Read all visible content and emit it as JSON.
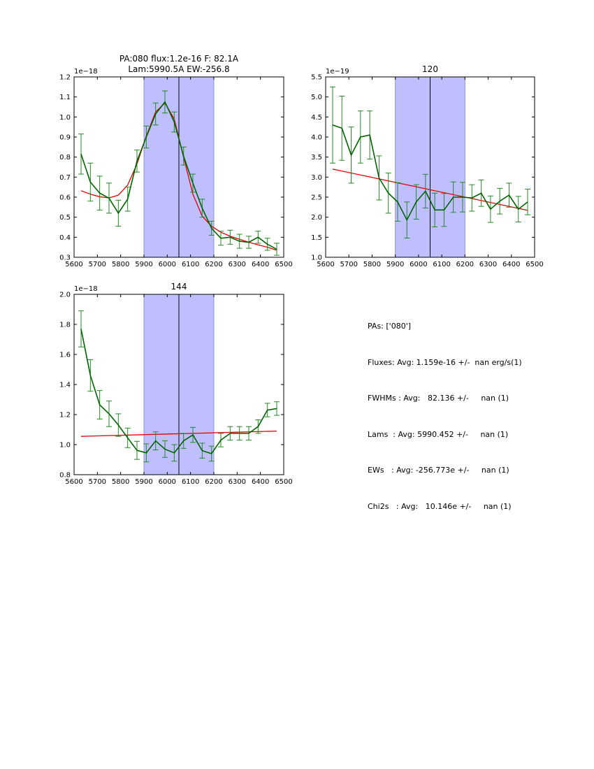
{
  "colors": {
    "band": "#bfbfff",
    "band_edge": "#8080c0",
    "data_line": "#006400",
    "errorbar": "#228b22",
    "fit": "#e00000",
    "axis": "#000000"
  },
  "chart_data": [
    {
      "type": "line",
      "title_lines": [
        "PA:080 flux:1.2e-16 F: 82.1A",
        "Lam:5990.5A EW:-256.8"
      ],
      "offset_label": "1e−18",
      "xlim": [
        5600,
        6500
      ],
      "ylim": [
        0.3,
        1.2
      ],
      "xticks": [
        5600,
        5700,
        5800,
        5900,
        6000,
        6100,
        6200,
        6300,
        6400,
        6500
      ],
      "yticks": [
        0.3,
        0.4,
        0.5,
        0.6,
        0.7,
        0.8,
        0.9,
        1.0,
        1.1,
        1.2
      ],
      "ytick_labels": [
        "0.3",
        "0.4",
        "0.5",
        "0.6",
        "0.7",
        "0.8",
        "0.9",
        "1.0",
        "1.1",
        "1.2"
      ],
      "band": [
        5900,
        6200
      ],
      "vline": 6050,
      "series": [
        {
          "name": "data",
          "x": [
            5630,
            5670,
            5710,
            5750,
            5790,
            5830,
            5870,
            5910,
            5950,
            5990,
            6030,
            6070,
            6110,
            6150,
            6190,
            6230,
            6270,
            6310,
            6350,
            6390,
            6430,
            6470
          ],
          "y": [
            0.815,
            0.675,
            0.62,
            0.595,
            0.52,
            0.59,
            0.78,
            0.9,
            1.015,
            1.075,
            0.975,
            0.805,
            0.67,
            0.545,
            0.445,
            0.395,
            0.4,
            0.38,
            0.375,
            0.4,
            0.365,
            0.34
          ],
          "err": [
            0.1,
            0.095,
            0.085,
            0.075,
            0.065,
            0.06,
            0.055,
            0.055,
            0.055,
            0.055,
            0.05,
            0.045,
            0.045,
            0.045,
            0.035,
            0.035,
            0.035,
            0.035,
            0.03,
            0.03,
            0.03,
            0.03
          ]
        },
        {
          "name": "fit",
          "x": [
            5630,
            5670,
            5710,
            5750,
            5790,
            5830,
            5870,
            5910,
            5950,
            5990,
            6030,
            6070,
            6110,
            6150,
            6190,
            6230,
            6270,
            6310,
            6350,
            6390,
            6430,
            6470
          ],
          "y": [
            0.632,
            0.615,
            0.602,
            0.596,
            0.61,
            0.66,
            0.765,
            0.905,
            1.025,
            1.07,
            0.99,
            0.8,
            0.615,
            0.505,
            0.455,
            0.425,
            0.405,
            0.39,
            0.375,
            0.362,
            0.35,
            0.335
          ]
        }
      ]
    },
    {
      "type": "line",
      "title_lines": [
        "120"
      ],
      "offset_label": "1e−19",
      "xlim": [
        5600,
        6500
      ],
      "ylim": [
        1.0,
        5.5
      ],
      "xticks": [
        5600,
        5700,
        5800,
        5900,
        6000,
        6100,
        6200,
        6300,
        6400,
        6500
      ],
      "yticks": [
        1.0,
        1.5,
        2.0,
        2.5,
        3.0,
        3.5,
        4.0,
        4.5,
        5.0,
        5.5
      ],
      "ytick_labels": [
        "1.0",
        "1.5",
        "2.0",
        "2.5",
        "3.0",
        "3.5",
        "4.0",
        "4.5",
        "5.0",
        "5.5"
      ],
      "band": [
        5900,
        6200
      ],
      "vline": 6050,
      "series": [
        {
          "name": "data",
          "x": [
            5630,
            5670,
            5710,
            5750,
            5790,
            5830,
            5870,
            5910,
            5950,
            5990,
            6030,
            6070,
            6110,
            6150,
            6190,
            6230,
            6270,
            6310,
            6350,
            6390,
            6430,
            6470
          ],
          "y": [
            4.3,
            4.22,
            3.55,
            4.0,
            4.05,
            2.98,
            2.6,
            2.38,
            1.93,
            2.38,
            2.65,
            2.18,
            2.18,
            2.5,
            2.5,
            2.48,
            2.6,
            2.2,
            2.4,
            2.55,
            2.2,
            2.38
          ],
          "err": [
            0.95,
            0.8,
            0.7,
            0.65,
            0.6,
            0.55,
            0.5,
            0.48,
            0.45,
            0.43,
            0.42,
            0.42,
            0.41,
            0.38,
            0.37,
            0.33,
            0.33,
            0.33,
            0.32,
            0.3,
            0.32,
            0.32
          ]
        },
        {
          "name": "fit",
          "x": [
            5630,
            6470
          ],
          "y": [
            3.2,
            2.17
          ]
        }
      ]
    },
    {
      "type": "line",
      "title_lines": [
        "144"
      ],
      "offset_label": "1e−18",
      "xlim": [
        5600,
        6500
      ],
      "ylim": [
        0.8,
        2.0
      ],
      "xticks": [
        5600,
        5700,
        5800,
        5900,
        6000,
        6100,
        6200,
        6300,
        6400,
        6500
      ],
      "yticks": [
        0.8,
        1.0,
        1.2,
        1.4,
        1.6,
        1.8,
        2.0
      ],
      "ytick_labels": [
        "0.8",
        "1.0",
        "1.2",
        "1.4",
        "1.6",
        "1.8",
        "2.0"
      ],
      "band": [
        5900,
        6200
      ],
      "vline": 6050,
      "series": [
        {
          "name": "data",
          "x": [
            5630,
            5670,
            5710,
            5750,
            5790,
            5830,
            5870,
            5910,
            5950,
            5990,
            6030,
            6070,
            6110,
            6150,
            6190,
            6230,
            6270,
            6310,
            6350,
            6390,
            6430,
            6470
          ],
          "y": [
            1.77,
            1.46,
            1.265,
            1.205,
            1.13,
            1.045,
            0.962,
            0.945,
            1.025,
            0.97,
            0.945,
            1.025,
            1.065,
            0.96,
            0.94,
            1.03,
            1.075,
            1.075,
            1.075,
            1.12,
            1.23,
            1.24
          ],
          "err": [
            0.12,
            0.105,
            0.095,
            0.085,
            0.075,
            0.065,
            0.06,
            0.06,
            0.06,
            0.055,
            0.055,
            0.05,
            0.05,
            0.05,
            0.05,
            0.045,
            0.045,
            0.045,
            0.045,
            0.045,
            0.045,
            0.045
          ]
        },
        {
          "name": "fit",
          "x": [
            5630,
            6470
          ],
          "y": [
            1.055,
            1.09
          ]
        }
      ]
    }
  ],
  "stats": {
    "pas": "PAs: ['080']",
    "fluxes": "Fluxes: Avg: 1.159e-16 +/-  nan erg/s(1)",
    "fwhms": "FWHMs : Avg:   82.136 +/-     nan (1)",
    "lams": "Lams  : Avg: 5990.452 +/-     nan (1)",
    "ews": "EWs   : Avg: -256.773e +/-     nan (1)",
    "chi2s": "Chi2s   : Avg:   10.146e +/-     nan (1)"
  }
}
